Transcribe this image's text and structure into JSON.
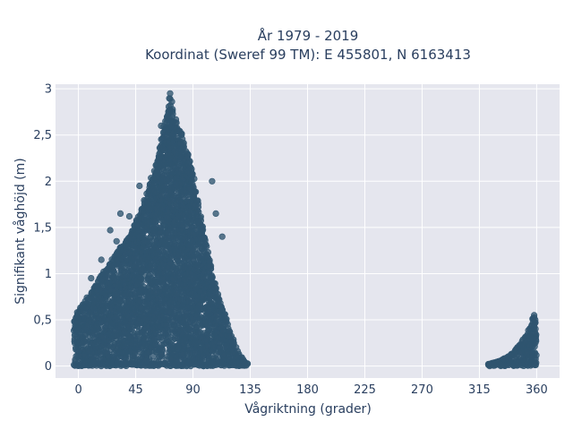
{
  "chart_data": {
    "type": "scatter",
    "title_lines": [
      "År 1979 - 2019",
      "Koordinat (Sweref 99 TM): E 455801, N 6163413"
    ],
    "xlabel": "Vågriktning (grader)",
    "ylabel": "Signifikant våghöjd (m)",
    "xlim": [
      -18,
      378
    ],
    "ylim": [
      -0.13,
      3.05
    ],
    "x_ticks": [
      0,
      45,
      90,
      135,
      180,
      225,
      270,
      315,
      360
    ],
    "x_tick_labels": [
      "0",
      "45",
      "90",
      "135",
      "180",
      "225",
      "270",
      "315",
      "360"
    ],
    "y_ticks": [
      0,
      0.5,
      1,
      1.5,
      2,
      2.5,
      3
    ],
    "y_tick_labels": [
      "0",
      "0,5",
      "1",
      "1,5",
      "2",
      "2,5",
      "3"
    ],
    "grid": true,
    "legend": "none",
    "marker_color": "#2f5570",
    "plot_background": "#e5e6ee",
    "series": [
      {
        "cluster_envelopes": [
          {
            "x": [
              -3,
              0,
              10,
              20,
              30,
              40,
              50,
              55,
              60,
              65,
              70,
              72,
              75,
              78,
              80,
              85,
              90,
              95,
              100,
              105,
              110,
              115,
              120,
              125,
              130,
              133
            ],
            "y_max": [
              0.5,
              0.62,
              0.8,
              1.02,
              1.22,
              1.42,
              1.72,
              1.95,
              2.15,
              2.45,
              2.75,
              2.95,
              2.7,
              2.65,
              2.55,
              2.35,
              2.1,
              1.7,
              1.35,
              1.0,
              0.75,
              0.55,
              0.35,
              0.15,
              0.05,
              0.02
            ],
            "y_min": 0.0
          },
          {
            "x": [
              322,
              330,
              340,
              345,
              350,
              355,
              358,
              360
            ],
            "y_max": [
              0.02,
              0.05,
              0.12,
              0.2,
              0.3,
              0.42,
              0.55,
              0.5
            ],
            "y_min": 0.0
          }
        ],
        "outliers": [
          {
            "x": 72,
            "y": 2.95
          },
          {
            "x": 65,
            "y": 2.6
          },
          {
            "x": 48,
            "y": 1.95
          },
          {
            "x": 33,
            "y": 1.65
          },
          {
            "x": 40,
            "y": 1.62
          },
          {
            "x": 25,
            "y": 1.47
          },
          {
            "x": 30,
            "y": 1.35
          },
          {
            "x": 105,
            "y": 2.0
          },
          {
            "x": 108,
            "y": 1.65
          },
          {
            "x": 113,
            "y": 1.4
          },
          {
            "x": 18,
            "y": 1.15
          },
          {
            "x": 10,
            "y": 0.95
          },
          {
            "x": 322,
            "y": 0.02
          },
          {
            "x": 358,
            "y": 0.55
          }
        ]
      }
    ]
  }
}
